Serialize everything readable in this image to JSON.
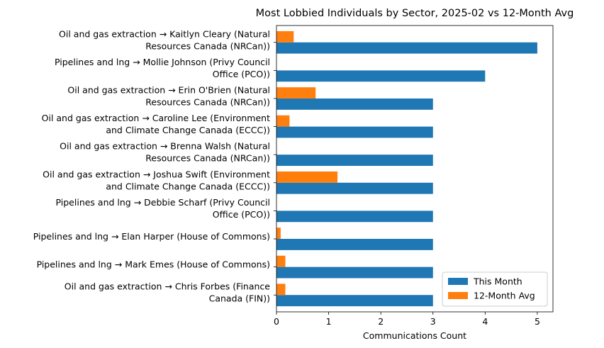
{
  "chart_data": {
    "type": "bar",
    "orientation": "horizontal",
    "title": "Most Lobbied Individuals by Sector, 2025-02 vs 12-Month Avg",
    "xlabel": "Communications Count",
    "ylabel": "",
    "xlim": [
      0,
      5.3
    ],
    "xticks": [
      0,
      1,
      2,
      3,
      4,
      5
    ],
    "grid": false,
    "legend_position": "bottom-right",
    "categories": [
      [
        "Oil and gas extraction → Kaitlyn Cleary (Natural",
        "Resources Canada (NRCan))"
      ],
      [
        "Pipelines and lng → Mollie Johnson (Privy Council",
        "Office (PCO))"
      ],
      [
        "Oil and gas extraction → Erin O'Brien (Natural",
        "Resources Canada (NRCan))"
      ],
      [
        "Oil and gas extraction → Caroline Lee (Environment",
        "and Climate Change Canada (ECCC))"
      ],
      [
        "Oil and gas extraction → Brenna Walsh (Natural",
        "Resources Canada (NRCan))"
      ],
      [
        "Oil and gas extraction → Joshua Swift (Environment",
        "and Climate Change Canada (ECCC))"
      ],
      [
        "Pipelines and lng → Debbie Scharf (Privy Council",
        "Office (PCO))"
      ],
      [
        "Pipelines and lng → Elan Harper (House of Commons)"
      ],
      [
        "Pipelines and lng → Mark Emes (House of Commons)"
      ],
      [
        "Oil and gas extraction → Chris Forbes (Finance",
        "Canada (FIN))"
      ]
    ],
    "series": [
      {
        "name": "This Month",
        "color": "#1f77b4",
        "values": [
          5,
          4,
          3,
          3,
          3,
          3,
          3,
          3,
          3,
          3
        ]
      },
      {
        "name": "12-Month Avg",
        "color": "#ff7f0e",
        "values": [
          0.33,
          0,
          0.75,
          0.25,
          0,
          1.17,
          0,
          0.08,
          0.17,
          0.17
        ]
      }
    ]
  }
}
